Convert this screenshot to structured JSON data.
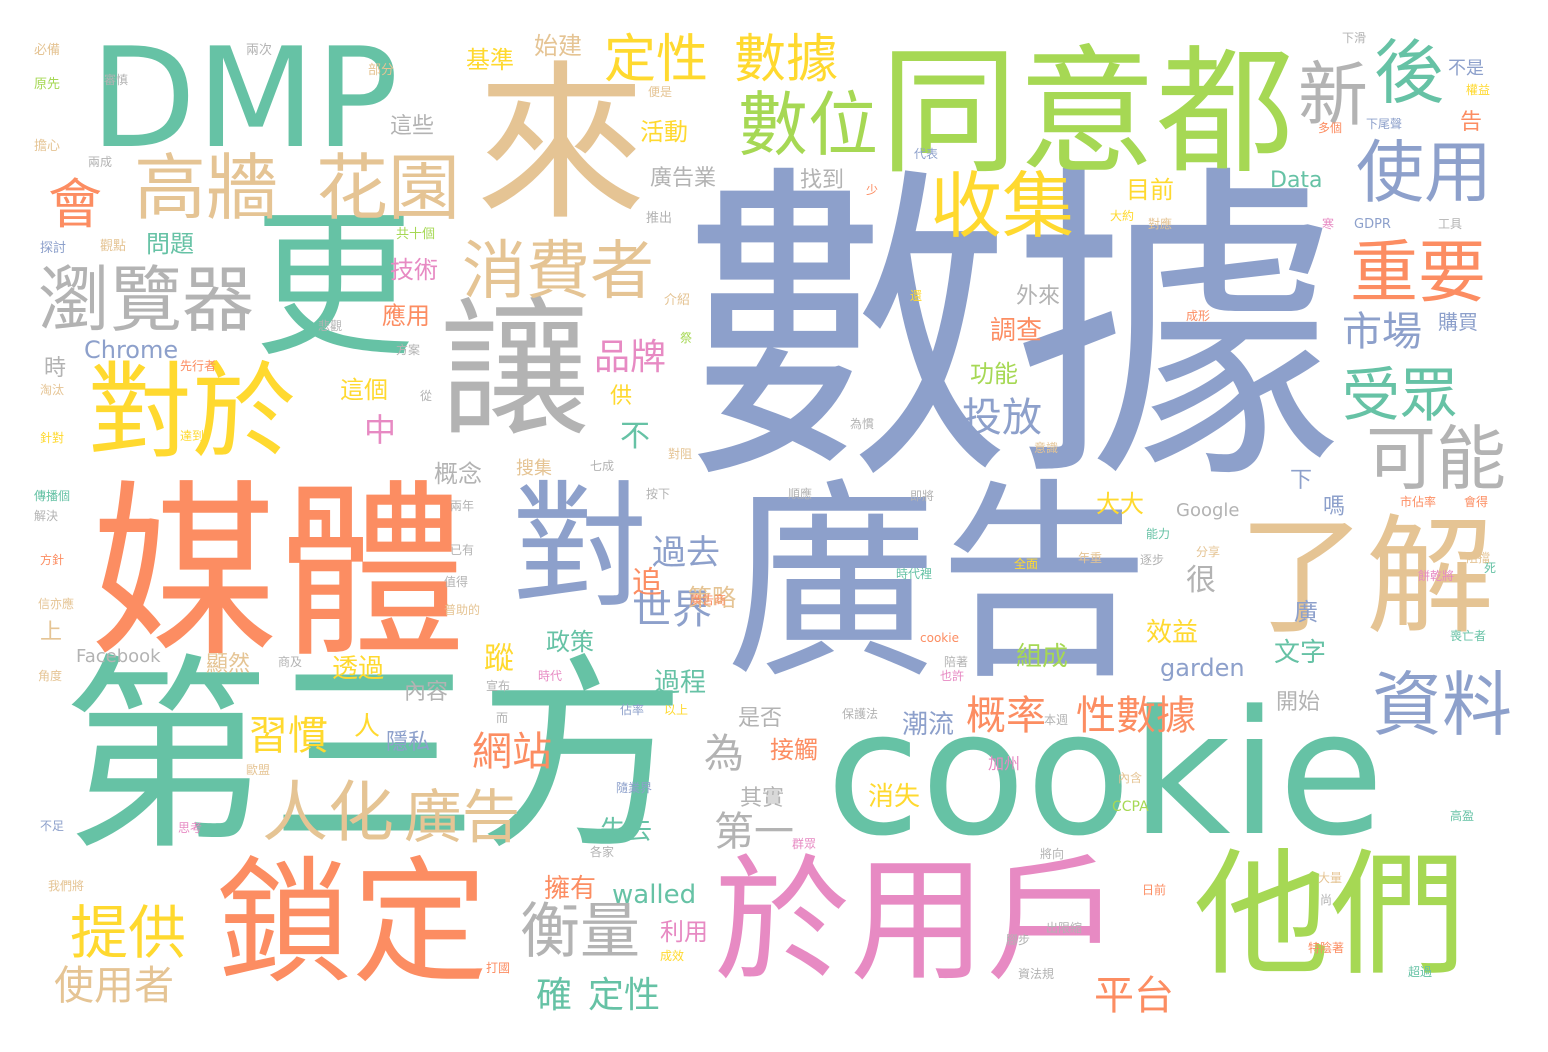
{
  "palette": {
    "teal": "#66c2a5",
    "orange": "#fc8d62",
    "periwinkle": "#8da0cb",
    "pink": "#e78ac3",
    "lime": "#a6d854",
    "yellow": "#ffd92f",
    "tan": "#e5c494",
    "grey": "#b3b3b3",
    "background": "#ffffff"
  },
  "words": {
    "w001": "數據",
    "w002": "第三方",
    "w003": "cookie",
    "w004": "廣告",
    "w005": "媒體",
    "w006": "來",
    "w007": "同意都",
    "w008": "DMP",
    "w009": "更",
    "w010": "對於",
    "w011": "讓",
    "w012": "對",
    "w013": "了解",
    "w014": "鎖定",
    "w015": "於用戶",
    "w016": "他們",
    "w017": "資料",
    "w018": "高牆",
    "w019": "花園",
    "w020": "瀏覽器",
    "w021": "消費者",
    "w022": "收集",
    "w023": "數位",
    "w024": "定性",
    "w025": "數據",
    "w026": "新",
    "w027": "後",
    "w028": "使用",
    "w029": "重要",
    "w030": "市場",
    "w031": "受眾",
    "w032": "可能",
    "w033": "會",
    "w034": "人化",
    "w035": "廣告",
    "w036": "提供",
    "w037": "衡量",
    "w038": "使用者",
    "w039": "品牌",
    "w040": "投放",
    "w041": "世界",
    "w042": "過去",
    "w043": "網站",
    "w044": "習慣",
    "w045": "概率",
    "w046": "性數據",
    "w047": "平台",
    "w048": "確",
    "w049": "定性",
    "w050": "walled",
    "w051": "garden",
    "w052": "Chrome",
    "w053": "Data",
    "w054": "Google",
    "w055": "Facebook",
    "w056": "GDPR",
    "w057": "CCPA",
    "w058": "基準",
    "w059": "始建",
    "w060": "活動",
    "w061": "廣告業",
    "w062": "找到",
    "w063": "目前",
    "w064": "問題",
    "w065": "技術",
    "w066": "應用",
    "w067": "這個",
    "w068": "中",
    "w069": "不",
    "w070": "概念",
    "w071": "策略",
    "w072": "政策",
    "w073": "內容",
    "w074": "透過",
    "w075": "顯然",
    "w076": "隱私",
    "w077": "人",
    "w078": "為",
    "w079": "第一",
    "w080": "其實",
    "w081": "接觸",
    "w082": "是否",
    "w083": "潮流",
    "w084": "過程",
    "w085": "效益",
    "w086": "組成",
    "w087": "消失",
    "w088": "失去",
    "w089": "擁有",
    "w090": "利用",
    "w091": "調查",
    "w092": "功能",
    "w093": "外來",
    "w094": "購買",
    "w095": "時",
    "w096": "這些",
    "w097": "不是",
    "w098": "告",
    "w099": "大大",
    "w100": "嗎",
    "w101": "下",
    "w102": "很",
    "w103": "廣",
    "w104": "文字",
    "w105": "開始",
    "w106": "上",
    "w107": "追",
    "w108": "蹤",
    "w109": "供",
    "w110": "加州",
    "w111": "共十個",
    "w112": "觀點",
    "w113": "探討",
    "w114": "推出",
    "w115": "介紹",
    "w116": "下滑",
    "w117": "兩次",
    "w118": "部分",
    "w119": "必備",
    "w120": "原先",
    "w121": "擔心",
    "w122": "兩成",
    "w123": "審慎",
    "w124": "便是",
    "w125": "多個",
    "w126": "下尾聲",
    "w127": "代表",
    "w128": "權益",
    "w129": "少",
    "w130": "大約",
    "w131": "對應",
    "w132": "寒",
    "w133": "工具",
    "w134": "還",
    "w135": "悲觀",
    "w136": "方案",
    "w137": "先行者",
    "w138": "淘汰",
    "w139": "針對",
    "w140": "達到",
    "w141": "從",
    "w142": "為慣",
    "w143": "七成",
    "w144": "對阻",
    "w145": "意識",
    "w146": "順應",
    "w147": "即將",
    "w148": "市佔率",
    "w149": "會得",
    "w150": "傳播個",
    "w151": "解決",
    "w152": "兩年",
    "w153": "按下",
    "w154": "能力",
    "w155": "逐步",
    "w156": "分享",
    "w157": "死",
    "w158": "方針",
    "w159": "已有",
    "w160": "值得",
    "w161": "全面",
    "w162": "年重",
    "w163": "餅乾將",
    "w164": "信亦應",
    "w165": "普助的",
    "w166": "時代裡",
    "w167": "廣告商",
    "w168": "商及",
    "w169": "角度",
    "w170": "時代",
    "w171": "宣布",
    "w172": "陪著",
    "w173": "也許",
    "w174": "保護法",
    "w175": "而",
    "w176": "佔率",
    "w177": "以上",
    "w178": "本週",
    "w179": "歐盟",
    "w180": "隨業界",
    "w181": "內含",
    "w182": "不足",
    "w183": "思考",
    "w184": "各家",
    "w185": "群眾",
    "w186": "將向",
    "w187": "大量",
    "w188": "高盈",
    "w189": "我們將",
    "w190": "日前",
    "w191": "尚",
    "w192": "出限縮",
    "w193": "腳步",
    "w194": "打國",
    "w195": "成效",
    "w196": "資法規",
    "w197": "特陰著",
    "w198": "超過",
    "w199": "搜集",
    "w200": "阻擋",
    "w201": "喪亡者",
    "w202": "祭",
    "w203": "成形",
    "w204": "cookie"
  }
}
